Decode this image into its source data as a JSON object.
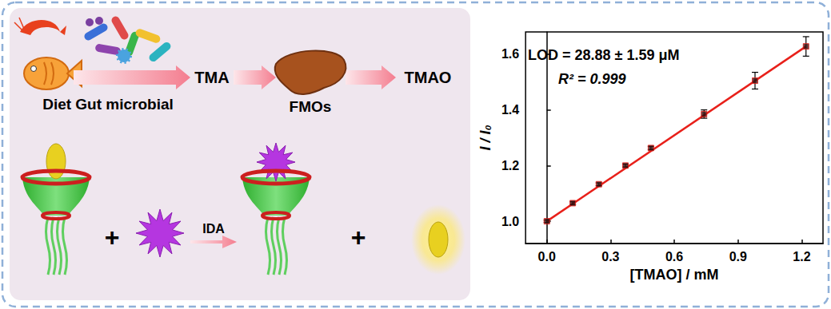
{
  "chart_data": {
    "type": "scatter",
    "annotations": [
      "LOD = 28.88 ± 1.59 μM",
      "R² = 0.999"
    ],
    "x_label": "[TMAO] / mM",
    "y_label": "I / I₀",
    "x": [
      0,
      0.122,
      0.245,
      0.37,
      0.49,
      0.74,
      0.98,
      1.22
    ],
    "series": [
      {
        "type": "scatter",
        "marker": "square",
        "color": "#3a1010",
        "values": [
          1.0,
          1.065,
          1.133,
          1.2,
          1.263,
          1.385,
          1.505,
          1.628
        ],
        "errors": [
          0.004,
          0.005,
          0.005,
          0.005,
          0.006,
          0.015,
          0.03,
          0.035
        ]
      },
      {
        "type": "line",
        "line_style": "solid",
        "color": "#e8201a",
        "x": [
          0,
          1.22
        ],
        "values": [
          1.0,
          1.628
        ]
      }
    ],
    "xlim": [
      -0.1,
      1.3
    ],
    "xticks": [
      {
        "value": 0,
        "label": "0.0"
      },
      0.3,
      0.6,
      0.9,
      1.2
    ],
    "ylim": [
      0.92,
      1.68
    ],
    "yticks": [
      {
        "value": 1,
        "label": "1.0"
      },
      1.2,
      1.4,
      1.6
    ],
    "grid": false
  },
  "diagram": {
    "pathway": [
      "Diet Gut microbial",
      "TMA",
      "FMOs",
      "TMAO"
    ],
    "reaction": {
      "operator": "+",
      "arrow_label": "IDA"
    }
  }
}
